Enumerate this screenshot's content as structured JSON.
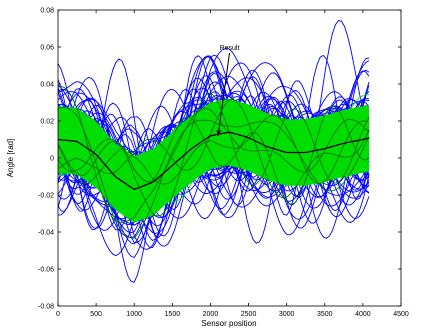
{
  "chart_data": {
    "type": "line",
    "title": "",
    "xlabel": "Sensor position",
    "ylabel": "Angle [rad]",
    "xlim": [
      0,
      4500
    ],
    "ylim": [
      -0.08,
      0.08
    ],
    "x_ticks": [
      0,
      500,
      1000,
      1500,
      2000,
      2500,
      3000,
      3500,
      4000,
      4500
    ],
    "x_tick_labels": [
      "0",
      "500",
      "1000",
      "1500",
      "2000",
      "2500",
      "3000",
      "3500",
      "4000",
      "4500"
    ],
    "y_ticks": [
      -0.08,
      -0.06,
      -0.04,
      -0.02,
      0,
      0.02,
      0.04,
      0.06,
      0.08
    ],
    "y_tick_labels": [
      "-0.08",
      "-0.06",
      "-0.04",
      "-0.02",
      "0",
      "0.02",
      "0.04",
      "0.06",
      "0.08"
    ],
    "grid": false,
    "legend": "none",
    "annotations": [
      {
        "text": "Result",
        "x": 2250,
        "y": 0.06,
        "arrow_to": {
          "x": 2100,
          "y": 0.012
        }
      }
    ],
    "series": [
      {
        "name": "Result",
        "color": "#000000",
        "style": "solid",
        "x": [
          0,
          250,
          500,
          750,
          1000,
          1250,
          1500,
          1750,
          2000,
          2250,
          2500,
          2750,
          3000,
          3250,
          3500,
          3750,
          4000,
          4100
        ],
        "y": [
          0.01,
          0.009,
          0.002,
          -0.01,
          -0.017,
          -0.013,
          -0.004,
          0.005,
          0.012,
          0.014,
          0.011,
          0.006,
          0.003,
          0.003,
          0.005,
          0.008,
          0.01,
          0.011
        ]
      }
    ],
    "band_series": {
      "description_hidden": true,
      "green_color": "#00dd00",
      "blue_color": "#0000ff",
      "dark_green_color": "#007700",
      "green_band_halfwidth": 0.018,
      "blue_curve_count": 70,
      "green_curve_count": 90
    }
  }
}
